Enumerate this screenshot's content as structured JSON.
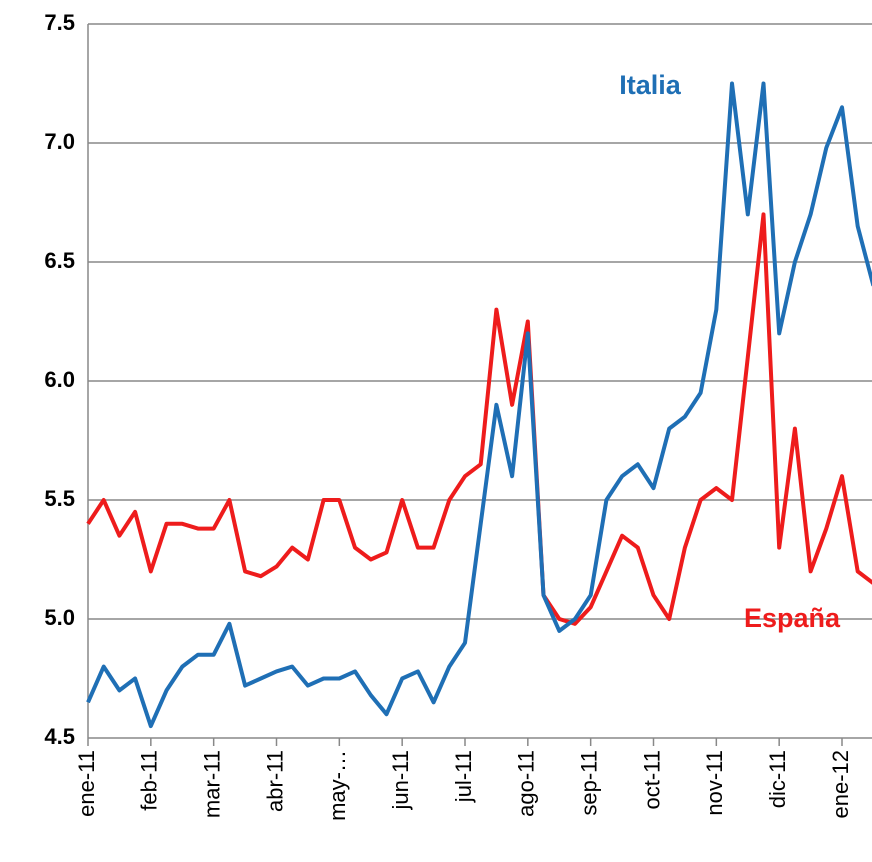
{
  "chart_data": {
    "type": "line",
    "x": [
      "ene-11",
      null,
      null,
      null,
      "feb-11",
      null,
      null,
      null,
      "mar-11",
      null,
      null,
      null,
      "abr-11",
      null,
      null,
      null,
      "may-…",
      null,
      null,
      null,
      "jun-11",
      null,
      null,
      null,
      "jul-11",
      null,
      null,
      null,
      "ago-11",
      null,
      null,
      null,
      "sep-11",
      null,
      null,
      null,
      "oct-11",
      null,
      null,
      null,
      "nov-11",
      null,
      null,
      null,
      "dic-11",
      null,
      null,
      null,
      "ene-12",
      null,
      null
    ],
    "series": [
      {
        "name": "Italia",
        "color": "#1f6fb5",
        "values": [
          4.65,
          4.8,
          4.7,
          4.75,
          4.55,
          4.7,
          4.8,
          4.85,
          4.85,
          4.98,
          4.72,
          4.75,
          4.78,
          4.8,
          4.72,
          4.75,
          4.75,
          4.78,
          4.68,
          4.6,
          4.75,
          4.78,
          4.65,
          4.8,
          4.9,
          5.4,
          5.9,
          5.6,
          6.2,
          5.1,
          4.95,
          5.0,
          5.1,
          5.5,
          5.6,
          5.65,
          5.55,
          5.8,
          5.85,
          5.95,
          6.3,
          7.25,
          6.7,
          7.25,
          6.2,
          6.5,
          6.7,
          6.98,
          7.15,
          6.65,
          6.4
        ]
      },
      {
        "name": "España",
        "color": "#ee1c1c",
        "values": [
          5.4,
          5.5,
          5.35,
          5.45,
          5.2,
          5.4,
          5.4,
          5.38,
          5.38,
          5.5,
          5.2,
          5.18,
          5.22,
          5.3,
          5.25,
          5.5,
          5.5,
          5.3,
          5.25,
          5.28,
          5.5,
          5.3,
          5.3,
          5.5,
          5.6,
          5.65,
          6.3,
          5.9,
          6.25,
          5.1,
          5.0,
          4.98,
          5.05,
          5.2,
          5.35,
          5.3,
          5.1,
          5.0,
          5.3,
          5.5,
          5.55,
          5.5,
          6.1,
          6.7,
          5.3,
          5.8,
          5.2,
          5.38,
          5.6,
          5.2,
          5.15
        ]
      }
    ],
    "ylim": [
      4.5,
      7.5
    ],
    "yticks": [
      {
        "value": 4.5,
        "label": "4.5"
      },
      {
        "value": 5,
        "label": "5.0"
      },
      {
        "value": 5.5,
        "label": "5.5"
      },
      {
        "value": 6,
        "label": "6.0"
      },
      {
        "value": 6.5,
        "label": "6.5"
      },
      {
        "value": 7,
        "label": "7.0"
      },
      {
        "value": 7.5,
        "label": "7.5"
      }
    ],
    "grid": true
  }
}
